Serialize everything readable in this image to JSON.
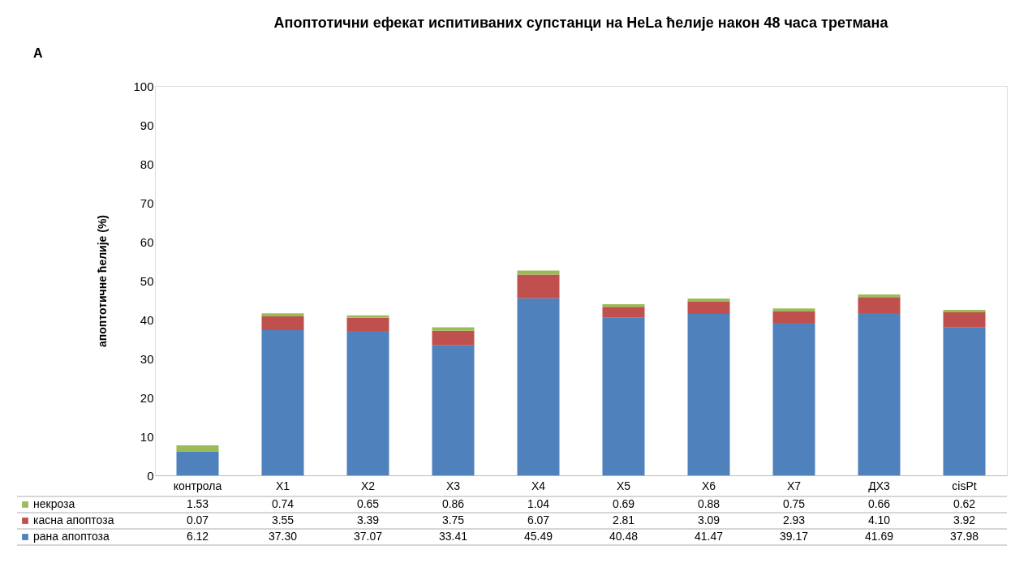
{
  "chart_data": {
    "type": "bar",
    "stacked": true,
    "title": "Апоптотични ефекат испитиваних супстанци на HeLa ћелије након 48 часа третмана",
    "ylabel": "апоптотичне ћелије (%)",
    "annotations": [
      "A"
    ],
    "categories": [
      "контрола",
      "X1",
      "X2",
      "X3",
      "X4",
      "X5",
      "X6",
      "X7",
      "ДХ3",
      "cisPt"
    ],
    "series": [
      {
        "name": "рана апоптоза",
        "color": "#4f81bd",
        "values": [
          6.12,
          37.3,
          37.07,
          33.41,
          45.49,
          40.48,
          41.47,
          39.17,
          41.69,
          37.98
        ],
        "value_labels": [
          "6.12",
          "37.30",
          "37.07",
          "33.41",
          "45.49",
          "40.48",
          "41.47",
          "39.17",
          "41.69",
          "37.98"
        ]
      },
      {
        "name": "касна апоптоза",
        "color": "#c0504d",
        "values": [
          0.07,
          3.55,
          3.39,
          3.75,
          6.07,
          2.81,
          3.09,
          2.93,
          4.1,
          3.92
        ],
        "value_labels": [
          "0.07",
          "3.55",
          "3.39",
          "3.75",
          "6.07",
          "2.81",
          "3.09",
          "2.93",
          "4.10",
          "3.92"
        ]
      },
      {
        "name": "некроза",
        "color": "#9bbb59",
        "values": [
          1.53,
          0.74,
          0.65,
          0.86,
          1.04,
          0.69,
          0.88,
          0.75,
          0.66,
          0.62
        ],
        "value_labels": [
          "1.53",
          "0.74",
          "0.65",
          "0.86",
          "1.04",
          "0.69",
          "0.88",
          "0.75",
          "0.66",
          "0.62"
        ]
      }
    ],
    "ylim": [
      0,
      100
    ],
    "yticks": [
      0,
      10,
      20,
      30,
      40,
      50,
      60,
      70,
      80,
      90,
      100
    ],
    "grid": false,
    "legend": "bottom"
  }
}
